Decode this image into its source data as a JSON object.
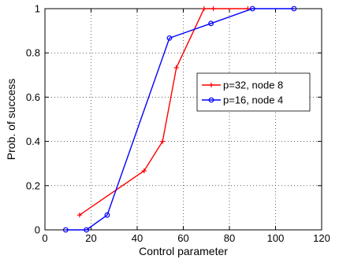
{
  "chart_data": {
    "type": "line",
    "xlabel": "Control parameter",
    "ylabel": "Prob. of success",
    "xlim": [
      0,
      120
    ],
    "ylim": [
      0,
      1
    ],
    "xticks": [
      "0",
      "20",
      "40",
      "60",
      "80",
      "100",
      "120"
    ],
    "yticks": [
      "0",
      "0.2",
      "0.4",
      "0.6",
      "0.8",
      "1"
    ],
    "grid": true,
    "legend_position": "right",
    "series": [
      {
        "name": "p=32, node 8",
        "color": "#ff0000",
        "marker": "plus",
        "x": [
          15,
          43,
          51,
          57,
          69,
          73,
          88
        ],
        "y": [
          0.067,
          0.267,
          0.4,
          0.733,
          1.0,
          1.0,
          1.0
        ]
      },
      {
        "name": "p=16, node 4",
        "color": "#0000ff",
        "marker": "circle",
        "x": [
          9,
          18,
          27,
          54,
          72,
          90,
          108
        ],
        "y": [
          0.0,
          0.0,
          0.067,
          0.867,
          0.933,
          1.0,
          1.0
        ]
      }
    ]
  }
}
